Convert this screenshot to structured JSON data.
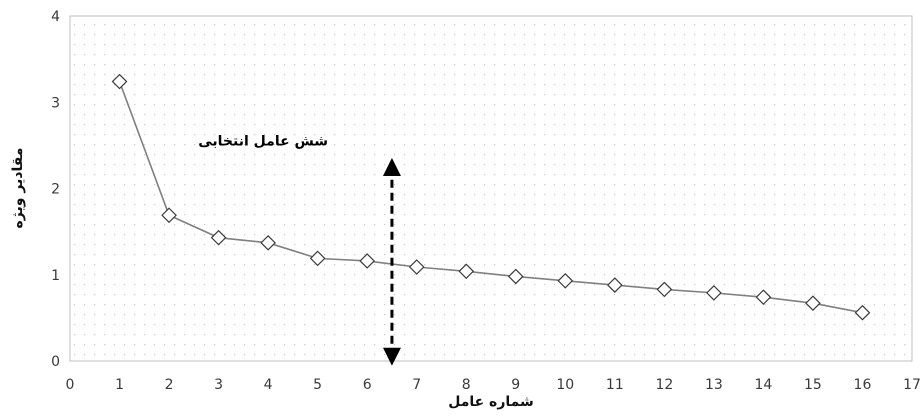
{
  "chart_data": {
    "type": "line",
    "title": "",
    "xlabel": "شماره عامل",
    "ylabel": "مقادیر ویژه",
    "xlim": [
      0,
      17
    ],
    "ylim": [
      0,
      4
    ],
    "xticks": [
      0,
      1,
      2,
      3,
      4,
      5,
      6,
      7,
      8,
      9,
      10,
      11,
      12,
      13,
      14,
      15,
      16,
      17
    ],
    "yticks": [
      0,
      1,
      2,
      3,
      4
    ],
    "grid": "dotted-fill",
    "marker": "diamond",
    "series": [
      {
        "x": [
          1,
          2,
          3,
          4,
          5,
          6,
          7,
          8,
          9,
          10,
          11,
          12,
          13,
          14,
          15,
          16
        ],
        "y": [
          3.24,
          1.69,
          1.43,
          1.37,
          1.19,
          1.16,
          1.09,
          1.04,
          0.98,
          0.93,
          0.88,
          0.83,
          0.79,
          0.74,
          0.67,
          0.56
        ]
      }
    ],
    "annotations": [
      {
        "text": "شش عامل انتخابی",
        "x": 3.9,
        "y": 2.5
      }
    ],
    "arrow": {
      "x": 6.5,
      "y_from": 0.05,
      "y_to": 2.25,
      "style": "dashed-double-headed"
    },
    "colors": {
      "line": "#808080",
      "marker_fill": "#ffffff",
      "marker_stroke": "#3a3a3a",
      "arrow": "#000000",
      "plot_dots": "#c8c8c8"
    }
  }
}
